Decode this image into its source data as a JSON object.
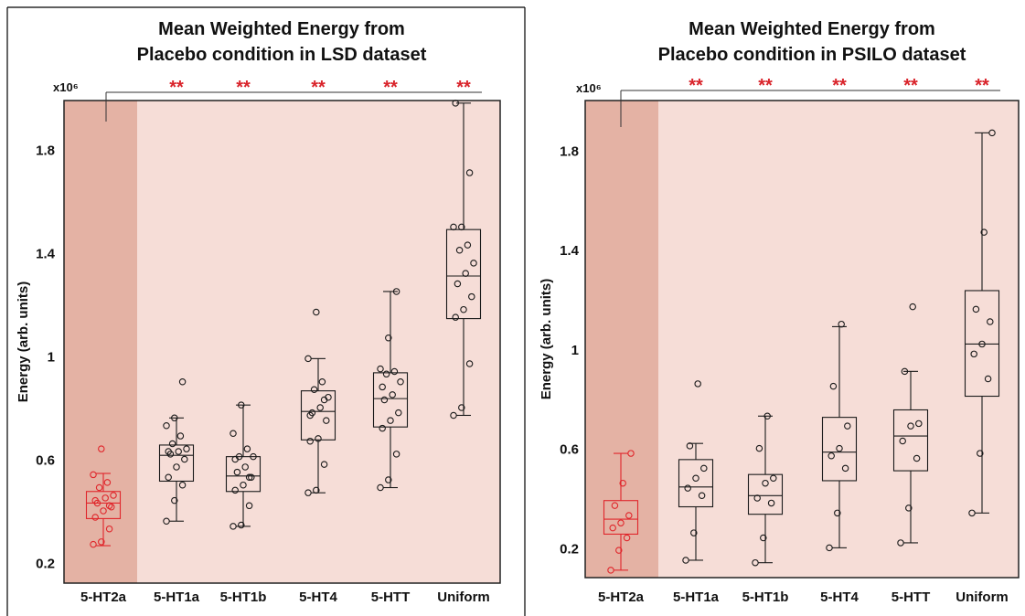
{
  "chart_data": [
    {
      "type": "box",
      "title_lines": [
        "Mean Weighted Energy from",
        "Placebo condition in LSD dataset"
      ],
      "ylabel": "Energy (arb. units)",
      "y_multiplier": "x10⁶",
      "ylim": [
        0.12,
        1.99
      ],
      "yticks": [
        0.2,
        0.6,
        1,
        1.4,
        1.8
      ],
      "ytick_labels": [
        "0.2",
        "0.6",
        "1",
        "1.4",
        "1.8"
      ],
      "significance_marker": "**",
      "reference_category": "5-HT2a",
      "categories": [
        {
          "name": "5-HT2a",
          "highlight": true,
          "whisker_low": 0.265,
          "q1": 0.37,
          "median": 0.43,
          "q3": 0.475,
          "whisker_high": 0.545,
          "points": [
            0.27,
            0.28,
            0.33,
            0.375,
            0.4,
            0.415,
            0.43,
            0.45,
            0.46,
            0.49,
            0.51,
            0.54,
            0.64,
            0.42,
            0.44
          ]
        },
        {
          "name": "5-HT1a",
          "highlight": false,
          "whisker_low": 0.36,
          "q1": 0.515,
          "median": 0.615,
          "q3": 0.655,
          "whisker_high": 0.76,
          "points": [
            0.36,
            0.44,
            0.5,
            0.53,
            0.57,
            0.6,
            0.62,
            0.63,
            0.64,
            0.66,
            0.69,
            0.73,
            0.76,
            0.9,
            0.63
          ]
        },
        {
          "name": "5-HT1b",
          "highlight": false,
          "whisker_low": 0.34,
          "q1": 0.475,
          "median": 0.535,
          "q3": 0.61,
          "whisker_high": 0.81,
          "points": [
            0.34,
            0.345,
            0.42,
            0.48,
            0.5,
            0.53,
            0.55,
            0.57,
            0.61,
            0.61,
            0.64,
            0.7,
            0.81,
            0.53,
            0.6
          ]
        },
        {
          "name": "5-HT4",
          "highlight": false,
          "whisker_low": 0.47,
          "q1": 0.675,
          "median": 0.785,
          "q3": 0.865,
          "whisker_high": 0.99,
          "points": [
            0.47,
            0.48,
            0.58,
            0.67,
            0.68,
            0.75,
            0.78,
            0.8,
            0.84,
            0.87,
            0.9,
            0.99,
            1.17,
            0.83,
            0.77
          ]
        },
        {
          "name": "5-HTT",
          "highlight": false,
          "whisker_low": 0.49,
          "q1": 0.725,
          "median": 0.835,
          "q3": 0.935,
          "whisker_high": 1.25,
          "points": [
            0.49,
            0.52,
            0.62,
            0.72,
            0.75,
            0.78,
            0.83,
            0.85,
            0.9,
            0.93,
            0.94,
            0.95,
            1.07,
            1.25,
            0.88
          ]
        },
        {
          "name": "Uniform",
          "highlight": false,
          "whisker_low": 0.77,
          "q1": 1.145,
          "median": 1.31,
          "q3": 1.49,
          "whisker_high": 1.98,
          "points": [
            0.77,
            0.8,
            0.97,
            1.15,
            1.18,
            1.23,
            1.28,
            1.32,
            1.36,
            1.41,
            1.43,
            1.5,
            1.5,
            1.71,
            1.98
          ]
        }
      ]
    },
    {
      "type": "box",
      "title_lines": [
        "Mean Weighted Energy from",
        "Placebo condition in PSILO dataset"
      ],
      "ylabel": "Energy (arb. units)",
      "y_multiplier": "x10⁶",
      "ylim": [
        0.08,
        2.0
      ],
      "yticks": [
        0.2,
        0.6,
        1,
        1.4,
        1.8
      ],
      "ytick_labels": [
        "0.2",
        "0.6",
        "1",
        "1.4",
        "1.8"
      ],
      "significance_marker": "**",
      "reference_category": "5-HT2a",
      "categories": [
        {
          "name": "5-HT2a",
          "highlight": true,
          "whisker_low": 0.11,
          "q1": 0.255,
          "median": 0.315,
          "q3": 0.39,
          "whisker_high": 0.58,
          "points": [
            0.11,
            0.19,
            0.24,
            0.28,
            0.3,
            0.33,
            0.37,
            0.46,
            0.58
          ]
        },
        {
          "name": "5-HT1a",
          "highlight": false,
          "whisker_low": 0.15,
          "q1": 0.365,
          "median": 0.445,
          "q3": 0.555,
          "whisker_high": 0.62,
          "points": [
            0.15,
            0.26,
            0.41,
            0.44,
            0.48,
            0.52,
            0.61,
            0.86
          ]
        },
        {
          "name": "5-HT1b",
          "highlight": false,
          "whisker_low": 0.14,
          "q1": 0.335,
          "median": 0.41,
          "q3": 0.495,
          "whisker_high": 0.73,
          "points": [
            0.14,
            0.24,
            0.38,
            0.4,
            0.46,
            0.48,
            0.6,
            0.73
          ]
        },
        {
          "name": "5-HT4",
          "highlight": false,
          "whisker_low": 0.2,
          "q1": 0.47,
          "median": 0.585,
          "q3": 0.725,
          "whisker_high": 1.09,
          "points": [
            0.2,
            0.34,
            0.52,
            0.57,
            0.6,
            0.69,
            0.85,
            1.1
          ]
        },
        {
          "name": "5-HTT",
          "highlight": false,
          "whisker_low": 0.22,
          "q1": 0.51,
          "median": 0.65,
          "q3": 0.755,
          "whisker_high": 0.91,
          "points": [
            0.22,
            0.36,
            0.56,
            0.63,
            0.69,
            0.7,
            0.91,
            1.17
          ]
        },
        {
          "name": "Uniform",
          "highlight": false,
          "whisker_low": 0.34,
          "q1": 0.81,
          "median": 1.02,
          "q3": 1.235,
          "whisker_high": 1.87,
          "points": [
            0.34,
            0.58,
            0.88,
            0.98,
            1.02,
            1.11,
            1.16,
            1.47,
            1.87
          ]
        }
      ]
    }
  ],
  "colors": {
    "plot_background": "#f6ddd7",
    "highlight_band": "#e4b2a4",
    "highlight": "#e0262b",
    "significance": "#d9232a",
    "ink": "#111111"
  }
}
